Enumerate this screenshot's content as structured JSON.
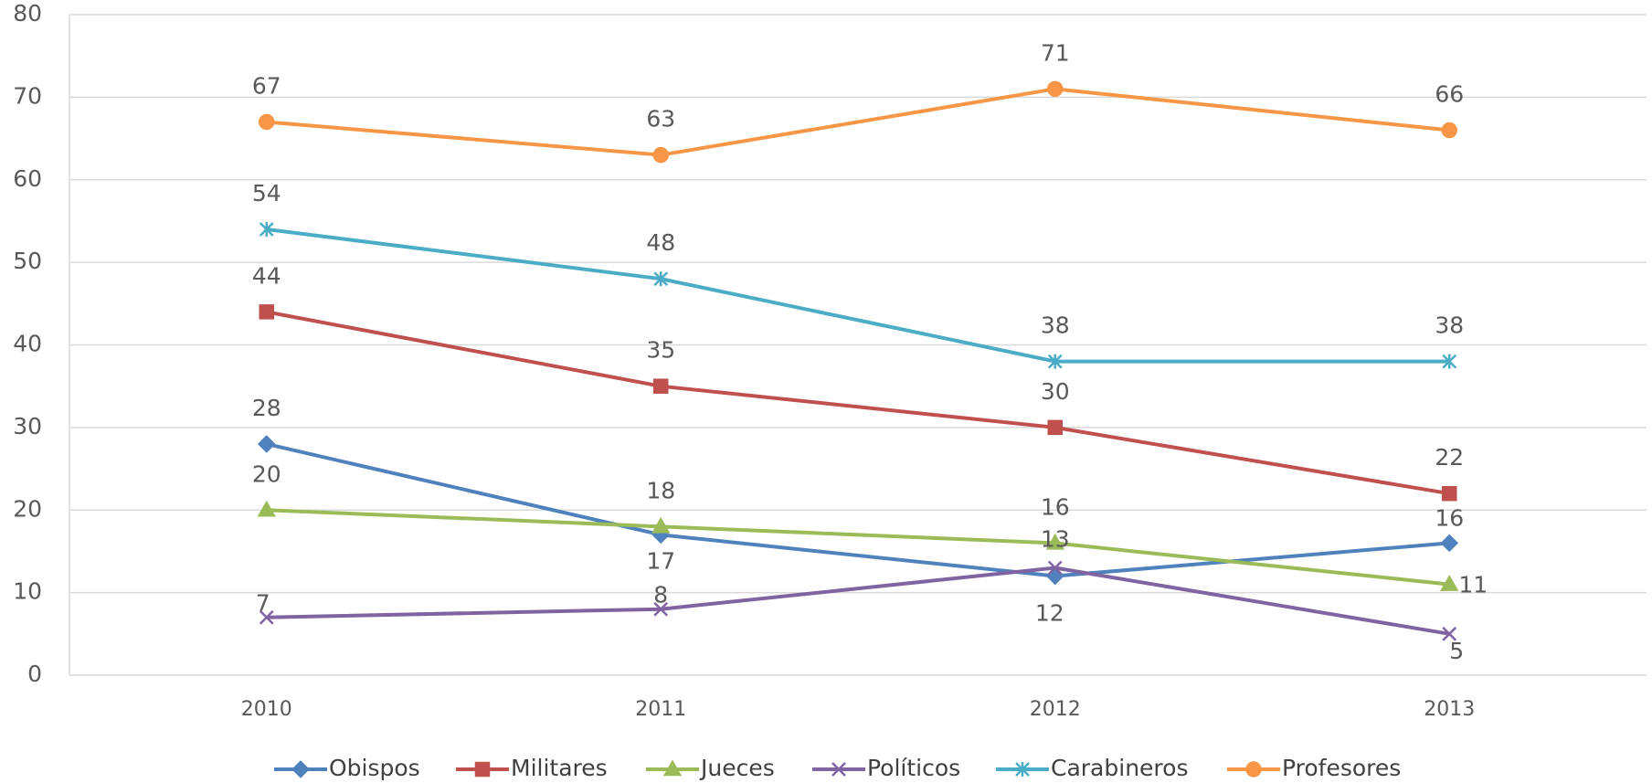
{
  "chart_data": {
    "type": "line",
    "categories": [
      "2010",
      "2011",
      "2012",
      "2013"
    ],
    "series": [
      {
        "name": "Obispos",
        "color": "#4f81bd",
        "marker": "diamond",
        "values": [
          28,
          17,
          12,
          16
        ]
      },
      {
        "name": "Militares",
        "color": "#c0504d",
        "marker": "square",
        "values": [
          44,
          35,
          30,
          22
        ]
      },
      {
        "name": "Jueces",
        "color": "#9bbb59",
        "marker": "triangle",
        "values": [
          20,
          18,
          16,
          11
        ]
      },
      {
        "name": "Políticos",
        "color": "#8064a2",
        "marker": "x",
        "values": [
          7,
          8,
          13,
          5
        ]
      },
      {
        "name": "Carabineros",
        "color": "#4bacc6",
        "marker": "asterisk",
        "values": [
          54,
          48,
          38,
          38
        ]
      },
      {
        "name": "Profesores",
        "color": "#f79646",
        "marker": "circle",
        "values": [
          67,
          63,
          71,
          66
        ]
      }
    ],
    "ylim": [
      0,
      80
    ],
    "yticks": [
      0,
      10,
      20,
      30,
      40,
      50,
      60,
      70,
      80
    ],
    "grid": true,
    "legend": "bottom"
  }
}
